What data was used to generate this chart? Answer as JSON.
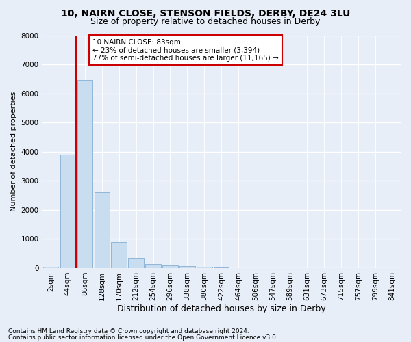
{
  "title1": "10, NAIRN CLOSE, STENSON FIELDS, DERBY, DE24 3LU",
  "title2": "Size of property relative to detached houses in Derby",
  "xlabel": "Distribution of detached houses by size in Derby",
  "ylabel": "Number of detached properties",
  "bar_labels": [
    "2sqm",
    "44sqm",
    "86sqm",
    "128sqm",
    "170sqm",
    "212sqm",
    "254sqm",
    "296sqm",
    "338sqm",
    "380sqm",
    "422sqm",
    "464sqm",
    "506sqm",
    "547sqm",
    "589sqm",
    "631sqm",
    "673sqm",
    "715sqm",
    "757sqm",
    "799sqm",
    "841sqm"
  ],
  "bar_values": [
    50,
    3900,
    6450,
    2600,
    900,
    340,
    140,
    100,
    75,
    40,
    20,
    10,
    5,
    3,
    2,
    1,
    1,
    0,
    0,
    0,
    0
  ],
  "bar_color": "#c9ddf0",
  "bar_edge_color": "#85afd4",
  "vline_x": 1.5,
  "vline_color": "#cc0000",
  "ylim": [
    0,
    8000
  ],
  "yticks": [
    0,
    1000,
    2000,
    3000,
    4000,
    5000,
    6000,
    7000,
    8000
  ],
  "annotation_text": "10 NAIRN CLOSE: 83sqm\n← 23% of detached houses are smaller (3,394)\n77% of semi-detached houses are larger (11,165) →",
  "annotation_box_color": "white",
  "annotation_box_edge": "#cc0000",
  "footer1": "Contains HM Land Registry data © Crown copyright and database right 2024.",
  "footer2": "Contains public sector information licensed under the Open Government Licence v3.0.",
  "background_color": "#e8eef8",
  "plot_bg_color": "#e8eef8",
  "grid_color": "white",
  "title1_fontsize": 10,
  "title2_fontsize": 9,
  "xlabel_fontsize": 9,
  "ylabel_fontsize": 8,
  "tick_fontsize": 7.5,
  "footer_fontsize": 6.5,
  "annotation_fontsize": 7.5
}
